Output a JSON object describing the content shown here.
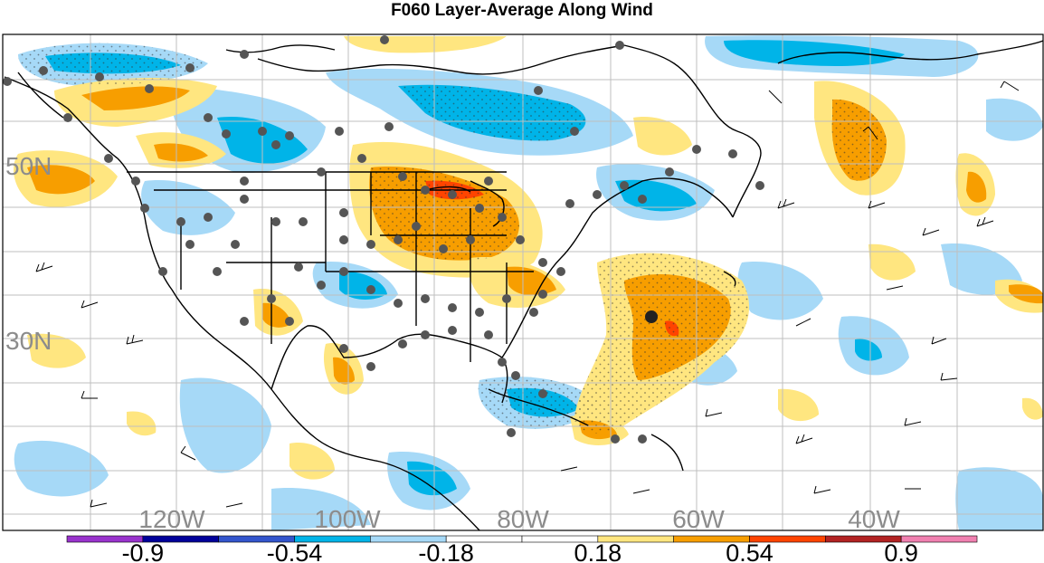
{
  "title": "F060 Layer-Average Along Wind",
  "lat_labels": [
    {
      "text": "50N",
      "lat": 50
    },
    {
      "text": "30N",
      "lat": 30
    }
  ],
  "lon_labels": [
    {
      "text": "120W",
      "lon": -120
    },
    {
      "text": "100W",
      "lon": -100
    },
    {
      "text": "80W",
      "lon": -80
    },
    {
      "text": "60W",
      "lon": -60
    },
    {
      "text": "40W",
      "lon": -40
    }
  ],
  "colorbar": {
    "colors": [
      "#9933cc",
      "#000099",
      "#3355cc",
      "#00b4e8",
      "#a6d9f7",
      "#ffffff",
      "#ffffff",
      "#ffe680",
      "#f79e00",
      "#ff4400",
      "#b22222",
      "#f080b0"
    ],
    "labels": [
      "-0.9",
      "-0.54",
      "-0.18",
      "0.18",
      "0.54",
      "0.9"
    ]
  },
  "palette": {
    "neg_light": "#a6d9f7",
    "neg_mid": "#00b4e8",
    "neg_dark": "#000099",
    "pos_light": "#ffe680",
    "pos_mid": "#f79e00",
    "pos_dark": "#ff4400",
    "station": "#555555",
    "grid": "#bfbfbf"
  }
}
